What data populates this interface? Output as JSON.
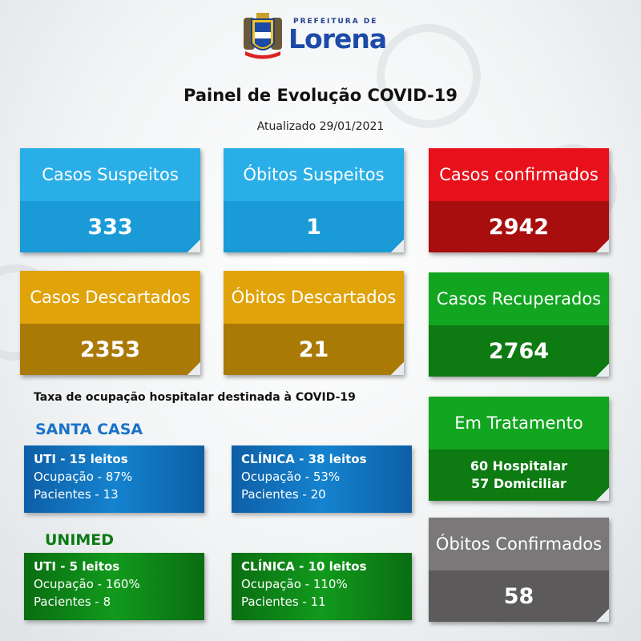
{
  "header": {
    "logo_prefix": "PREFEITURA DE",
    "logo_name": "Lorena",
    "title": "Painel de Evolução COVID-19",
    "updated": "Atualizado 29/01/2021"
  },
  "cards": {
    "casos_suspeitos": {
      "label": "Casos Suspeitos",
      "value": "333"
    },
    "obitos_suspeitos": {
      "label": "Óbitos Suspeitos",
      "value": "1"
    },
    "casos_confirmados": {
      "label": "Casos confirmados",
      "value": "2942"
    },
    "casos_descartados": {
      "label": "Casos Descartados",
      "value": "2353"
    },
    "obitos_descartados": {
      "label": "Óbitos Descartados",
      "value": "21"
    },
    "casos_recuperados": {
      "label": "Casos Recuperados",
      "value": "2764"
    },
    "em_tratamento": {
      "label": "Em Tratamento",
      "hospitalar": "60 Hospitalar",
      "domiciliar": "57 Domiciliar"
    },
    "obitos_confirmados": {
      "label": "Óbitos Confirmados",
      "value": "58"
    }
  },
  "occupancy": {
    "title": "Taxa de ocupação hospitalar destinada à COVID-19",
    "santa_casa": {
      "label": "SANTA CASA",
      "uti": {
        "title": "UTI - 15 leitos",
        "ocupacao": "Ocupação - 87%",
        "pacientes": "Pacientes - 13"
      },
      "clinica": {
        "title": "CLÍNICA - 38 leitos",
        "ocupacao": "Ocupação - 53%",
        "pacientes": "Pacientes - 20"
      }
    },
    "unimed": {
      "label": "UNIMED",
      "uti": {
        "title": "UTI - 5 leitos",
        "ocupacao": "Ocupação - 160%",
        "pacientes": "Pacientes - 8"
      },
      "clinica": {
        "title": "CLÍNICA - 10 leitos",
        "ocupacao": "Ocupação - 110%",
        "pacientes": "Pacientes - 11"
      }
    }
  },
  "colors": {
    "santa_casa_label": "#1a73c8",
    "unimed_label": "#0b7a14"
  }
}
